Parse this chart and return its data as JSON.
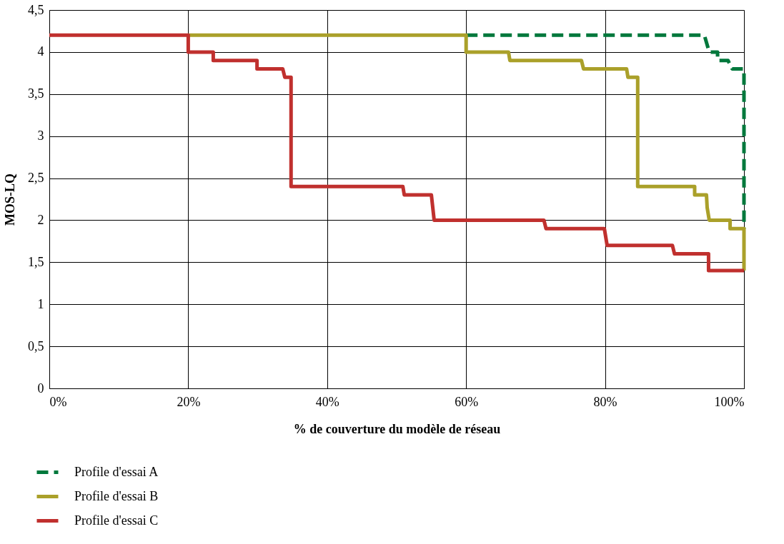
{
  "chart_data": {
    "type": "line",
    "xlabel": "% de couverture du modèle de réseau",
    "ylabel": "MOS-LQ",
    "xlim": [
      0,
      100
    ],
    "ylim": [
      0,
      4.5
    ],
    "xticks": [
      {
        "value": 0,
        "label": "0%"
      },
      {
        "value": 20,
        "label": "20%"
      },
      {
        "value": 40,
        "label": "40%"
      },
      {
        "value": 60,
        "label": "60%"
      },
      {
        "value": 80,
        "label": "80%"
      },
      {
        "value": 100,
        "label": "100%"
      }
    ],
    "yticks": [
      0,
      {
        "value": 0.5,
        "label": "0,5"
      },
      1,
      {
        "value": 1.5,
        "label": "1,5"
      },
      2,
      {
        "value": 2.5,
        "label": "2,5"
      },
      3,
      {
        "value": 3.5,
        "label": "3,5"
      },
      4,
      {
        "value": 4.5,
        "label": "4,5"
      }
    ],
    "grid": true,
    "legend": "bottom left",
    "marker": "none",
    "series": [
      {
        "name": "Profile d'essai A",
        "color": "#00783c",
        "line_style": "dashed",
        "x": [
          60,
          94.3,
          95.0,
          96.2,
          96.2,
          97.7,
          98.3,
          100,
          100
        ],
        "values": [
          4.2,
          4.2,
          4.0,
          4.0,
          3.9,
          3.9,
          3.8,
          3.8,
          1.9
        ]
      },
      {
        "name": "Profile d'essai B",
        "color": "#aaa02a",
        "line_style": "solid",
        "x": [
          20,
          60,
          60,
          66.1,
          66.3,
          76.6,
          76.9,
          83.1,
          83.3,
          84.7,
          84.7,
          92.9,
          92.9,
          94.6,
          94.7,
          95.0,
          98.0,
          98.0,
          100,
          100
        ],
        "values": [
          4.2,
          4.2,
          4.0,
          4.0,
          3.9,
          3.9,
          3.8,
          3.8,
          3.7,
          3.7,
          2.4,
          2.4,
          2.3,
          2.3,
          2.15,
          2.0,
          2.0,
          1.9,
          1.9,
          1.4
        ]
      },
      {
        "name": "Profile d'essai C",
        "color": "#c0302e",
        "line_style": "solid",
        "x": [
          0,
          20,
          20,
          23.6,
          23.6,
          29.9,
          29.9,
          33.6,
          33.9,
          34.8,
          34.8,
          50.9,
          51.1,
          55.0,
          55.4,
          71.2,
          71.5,
          79.9,
          80.3,
          89.7,
          90.0,
          94.9,
          94.9,
          100
        ],
        "values": [
          4.2,
          4.2,
          4.0,
          4.0,
          3.9,
          3.9,
          3.8,
          3.8,
          3.7,
          3.7,
          2.4,
          2.4,
          2.3,
          2.3,
          2.0,
          2.0,
          1.9,
          1.9,
          1.7,
          1.7,
          1.6,
          1.6,
          1.4,
          1.4
        ]
      }
    ]
  }
}
